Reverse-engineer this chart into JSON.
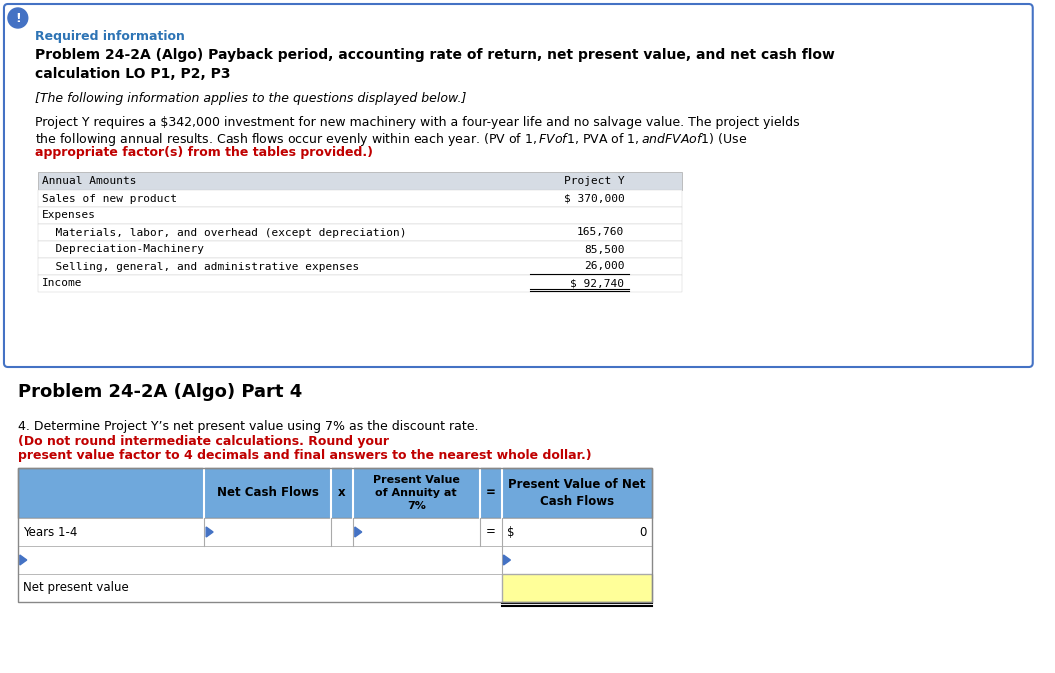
{
  "title_required": "Required information",
  "title_problem": "Problem 24-2A (Algo) Payback period, accounting rate of return, net present value, and net cash flow\ncalculation LO P1, P2, P3",
  "subtitle_italic": "[The following information applies to the questions displayed below.]",
  "table1_header_col1": "Annual Amounts",
  "table1_header_col2": "Project Y",
  "table1_rows": [
    [
      "Sales of new product",
      "$ 370,000"
    ],
    [
      "Expenses",
      ""
    ],
    [
      "  Materials, labor, and overhead (except depreciation)",
      "165,760"
    ],
    [
      "  Depreciation-Machinery",
      "85,500"
    ],
    [
      "  Selling, general, and administrative expenses",
      "26,000"
    ],
    [
      "Income",
      "$ 92,740"
    ]
  ],
  "part4_label": "Problem 24-2A (Algo) Part 4",
  "part4_instruction_normal": "4. Determine Project Y’s net present value using 7% as the discount rate. ",
  "part4_instruction_bold_red": "(Do not round intermediate calculations. Round your present value factor to 4 decimals and final answers to the nearest whole dollar.)",
  "colors": {
    "blue_border": "#4472C4",
    "required_info_blue": "#2E74B5",
    "red_bold": "#C00000",
    "link_blue": "#2E74B5",
    "table_header_bg": "#D6DCE4",
    "yellow_cell": "#FFFF99",
    "outer_box_border": "#4472C4",
    "outer_box_bg": "#FFFFFF",
    "table2_header_bg": "#6FA8DC"
  },
  "bg_color": "#FFFFFF"
}
